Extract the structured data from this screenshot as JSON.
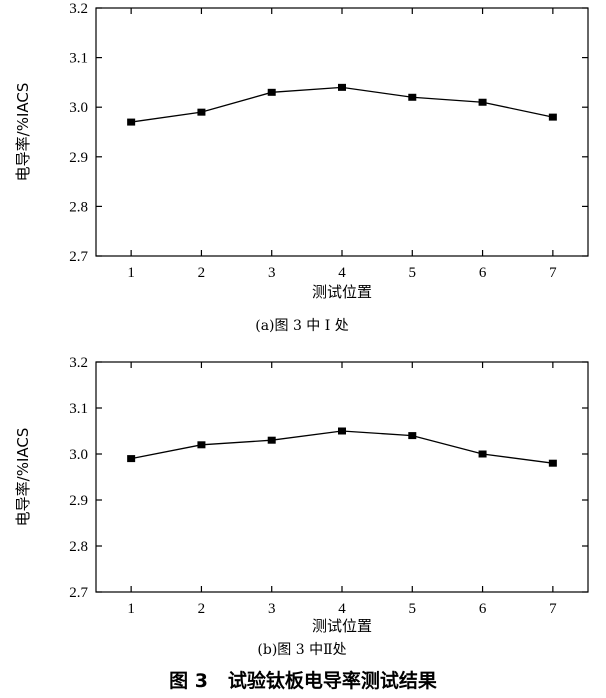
{
  "chart_data": [
    {
      "type": "line",
      "x": [
        1,
        2,
        3,
        4,
        5,
        6,
        7
      ],
      "series": [
        {
          "values": [
            2.97,
            2.99,
            3.03,
            3.04,
            3.02,
            3.01,
            2.98
          ]
        }
      ],
      "xlabel": "测试位置",
      "ylabel": "电导率/%IACS",
      "xticks": [
        "1",
        "2",
        "3",
        "4",
        "5",
        "6",
        "7"
      ],
      "yticks": [
        "2.7",
        "2.8",
        "2.9",
        "3.0",
        "3.1",
        "3.2"
      ],
      "ylim": [
        2.7,
        3.2
      ],
      "xlim": [
        0.5,
        7.5
      ],
      "grid": false,
      "marker": "square",
      "caption": "(a)图 3 中 I 处"
    },
    {
      "type": "line",
      "x": [
        1,
        2,
        3,
        4,
        5,
        6,
        7
      ],
      "series": [
        {
          "values": [
            2.99,
            3.02,
            3.03,
            3.05,
            3.04,
            3.0,
            2.98
          ]
        }
      ],
      "xlabel": "测试位置",
      "ylabel": "电导率/%IACS",
      "xticks": [
        "1",
        "2",
        "3",
        "4",
        "5",
        "6",
        "7"
      ],
      "yticks": [
        "2.7",
        "2.8",
        "2.9",
        "3.0",
        "3.1",
        "3.2"
      ],
      "ylim": [
        2.7,
        3.2
      ],
      "xlim": [
        0.5,
        7.5
      ],
      "grid": false,
      "marker": "square",
      "caption": "(b)图 3 中Ⅱ处"
    }
  ],
  "figure_title": "图 3   试验钛板电导率测试结果",
  "colors": {
    "line": "#000000",
    "axis": "#000000",
    "background": "#ffffff"
  }
}
